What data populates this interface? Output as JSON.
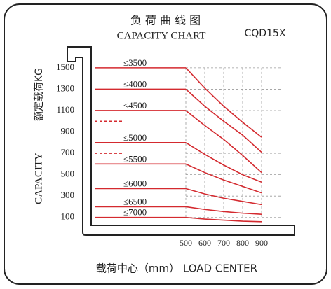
{
  "chart_data": {
    "type": "line",
    "title": "负 荷 曲 线 图",
    "subtitle": "CAPACITY CHART",
    "model": "CQD15X",
    "y_label_cn": "额定载荷KG",
    "y_label_en": "CAPACITY",
    "x_label": "载荷中心（mm） LOAD CENTER",
    "x": [
      500,
      600,
      700,
      800,
      900
    ],
    "xlim": [
      500,
      1000
    ],
    "xticks": [
      500,
      600,
      700,
      800,
      900
    ],
    "ylim": [
      0,
      1600
    ],
    "yticks": [
      1500,
      1300,
      1100,
      900,
      700,
      500,
      300,
      100
    ],
    "grid": true,
    "color": "#d42a2f",
    "dashed_levels": [
      1000,
      700
    ],
    "series": [
      {
        "name": "≤3500",
        "values": [
          1500,
          1310,
          1140,
          990,
          850
        ]
      },
      {
        "name": "≤4000",
        "values": [
          1300,
          1140,
          1000,
          870,
          710
        ]
      },
      {
        "name": "≤4500",
        "values": [
          1100,
          960,
          830,
          680,
          520
        ]
      },
      {
        "name": "≤5000",
        "values": [
          800,
          690,
          590,
          500,
          430
        ]
      },
      {
        "name": "≤5500",
        "values": [
          600,
          520,
          450,
          390,
          330
        ]
      },
      {
        "name": "≤6000",
        "values": [
          370,
          320,
          280,
          250,
          220
        ]
      },
      {
        "name": "≤6500",
        "values": [
          200,
          175,
          155,
          140,
          130
        ]
      },
      {
        "name": "≤7000",
        "values": [
          100,
          85,
          75,
          65,
          60
        ]
      }
    ]
  }
}
